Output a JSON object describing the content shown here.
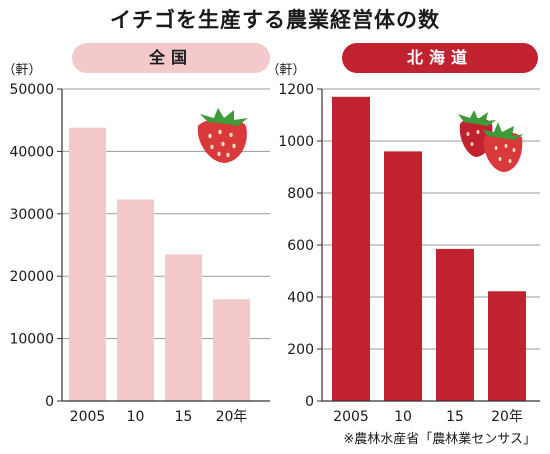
{
  "title": "イチゴを生産する農業経営体の数",
  "source_note": "※農林水産省「農林業センサス」",
  "chart_data": [
    {
      "type": "bar",
      "panel_label": "全国",
      "unit": "（軒）",
      "categories": [
        "2005",
        "10",
        "15",
        "20年"
      ],
      "values": [
        43800,
        32300,
        23500,
        16300
      ],
      "ylim": [
        0,
        50000
      ],
      "yticks": [
        0,
        10000,
        20000,
        30000,
        40000,
        50000
      ],
      "grid": true,
      "bar_color": "#f3c9cb"
    },
    {
      "type": "bar",
      "panel_label": "北海道",
      "unit": "（軒）",
      "categories": [
        "2005",
        "10",
        "15",
        "20年"
      ],
      "values": [
        1170,
        960,
        585,
        422
      ],
      "ylim": [
        0,
        1200
      ],
      "yticks": [
        0,
        200,
        400,
        600,
        800,
        1000,
        1200
      ],
      "grid": true,
      "bar_color": "#c1222f"
    }
  ]
}
